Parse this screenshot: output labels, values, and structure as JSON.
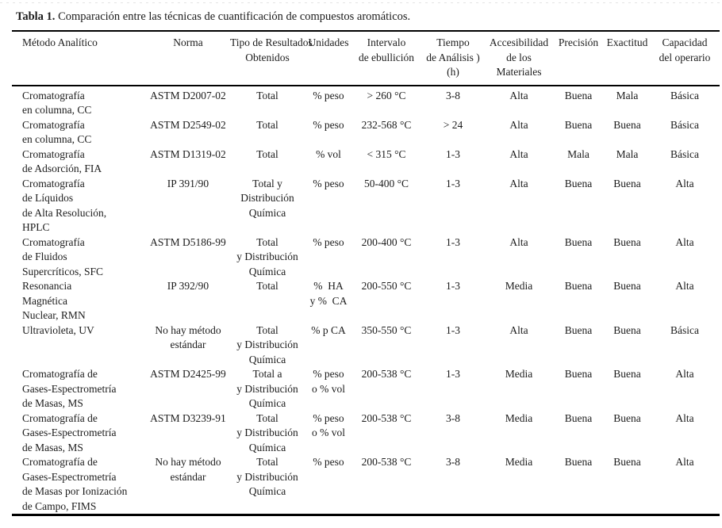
{
  "page": {
    "title": {
      "label": "Tabla 1.",
      "text": " Comparación entre las técnicas de cuantificación de compuestos aromáticos."
    }
  },
  "colors": {
    "background": "#ffffff",
    "text": "#1c1c1c",
    "rule": "#000000"
  },
  "table": {
    "columns": [
      {
        "id": "metodo-analitico",
        "text": "Método Analítico"
      },
      {
        "id": "norma",
        "text": "Norma"
      },
      {
        "id": "tipo-de-resultados",
        "text": "Tipo de Resultados\nObtenidos"
      },
      {
        "id": "unidades",
        "text": "Unidades"
      },
      {
        "id": "intervalo-de-ebullicion",
        "text": "Intervalo\nde ebullición"
      },
      {
        "id": "tiempo-de-analisis",
        "text": "Tiempo\nde Análisis )\n(h)"
      },
      {
        "id": "accesibilidad-de-los-materiales",
        "text": "Accesibilidad\nde los\nMateriales"
      },
      {
        "id": "precision",
        "text": "Precisión"
      },
      {
        "id": "exactitud",
        "text": "Exactitud"
      },
      {
        "id": "capacidad-del-operario",
        "text": "Capacidad\ndel operario"
      }
    ],
    "rows": [
      [
        "Cromatografía\nen columna, CC",
        "ASTM D2007-02",
        "Total",
        "% peso",
        "> 260 °C",
        "3-8",
        "Alta",
        "Buena",
        "Mala",
        "Básica"
      ],
      [
        "Cromatografía\nen columna, CC",
        "ASTM D2549-02",
        "Total",
        "% peso",
        "232-568 °C",
        "> 24",
        "Alta",
        "Buena",
        "Buena",
        "Básica"
      ],
      [
        "Cromatografía\nde Adsorción, FIA",
        "ASTM D1319-02",
        "Total",
        "% vol",
        "< 315 °C",
        "1-3",
        "Alta",
        "Mala",
        "Mala",
        "Básica"
      ],
      [
        "Cromatografía\nde Líquidos\nde Alta Resolución,\nHPLC",
        "IP 391/90",
        "Total y\nDistribución\nQuímica",
        "% peso",
        "50-400 °C",
        "1-3",
        "Alta",
        "Buena",
        "Buena",
        "Alta"
      ],
      [
        "Cromatografía\nde Fluidos\nSupercríticos, SFC",
        "ASTM D5186-99",
        "Total\ny Distribución\nQuímica",
        "% peso",
        "200-400 °C",
        "1-3",
        "Alta",
        "Buena",
        "Buena",
        "Alta"
      ],
      [
        "Resonancia\nMagnética\nNuclear, RMN",
        "IP 392/90",
        "Total",
        "%  HA\ny %  CA",
        "200-550 °C",
        "1-3",
        "Media",
        "Buena",
        "Buena",
        "Alta"
      ],
      [
        "Ultravioleta, UV",
        "No hay método\nestándar",
        "Total\ny Distribución\nQuímica",
        "% p CA",
        "350-550 °C",
        "1-3",
        "Alta",
        "Buena",
        "Buena",
        "Básica"
      ],
      [
        "Cromatografía de\nGases-Espectrometría\nde Masas, MS",
        "ASTM D2425-99",
        "Total a\ny Distribución\nQuímica",
        "% peso\no % vol",
        "200-538 °C",
        "1-3",
        "Media",
        "Buena",
        "Buena",
        "Alta"
      ],
      [
        "Cromatografía de\nGases-Espectrometría\nde Masas, MS",
        "ASTM D3239-91",
        "Total\ny Distribución\nQuímica",
        "% peso\no % vol",
        "200-538 °C",
        "3-8",
        "Media",
        "Buena",
        "Buena",
        "Alta"
      ],
      [
        "Cromatografía de\nGases-Espectrometría\nde Masas por Ionización\nde Campo, FIMS",
        "No hay método\nestándar",
        "Total\ny Distribución\nQuímica",
        "% peso",
        "200-538 °C",
        "3-8",
        "Media",
        "Buena",
        "Buena",
        "Alta"
      ]
    ]
  }
}
